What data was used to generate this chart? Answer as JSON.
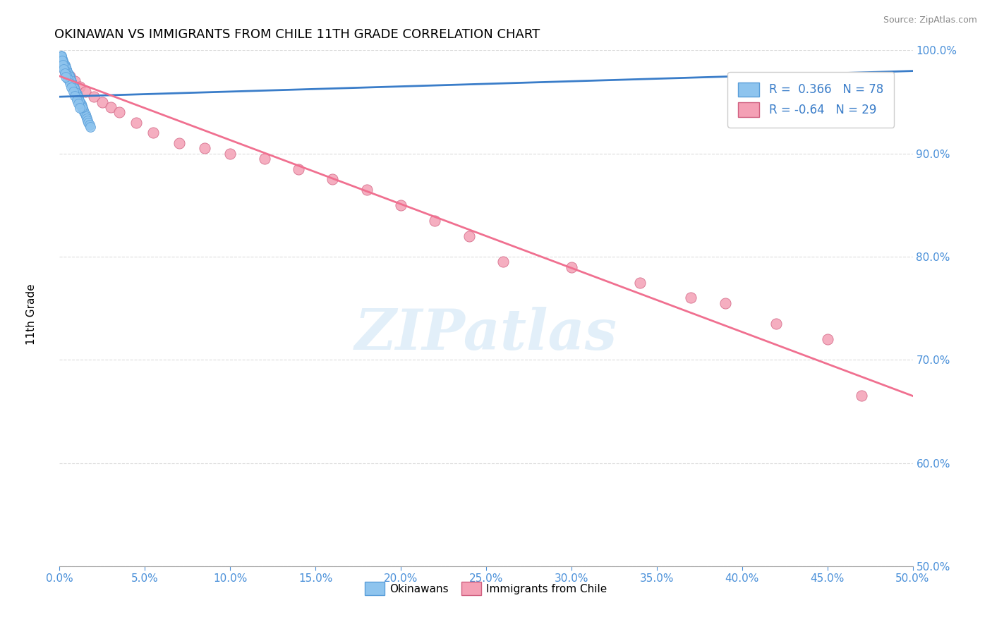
{
  "title": "OKINAWAN VS IMMIGRANTS FROM CHILE 11TH GRADE CORRELATION CHART",
  "source": "Source: ZipAtlas.com",
  "ylabel_label": "11th Grade",
  "xmin": 0.0,
  "xmax": 50.0,
  "ymin": 50.0,
  "ymax": 100.0,
  "R_okinawan": 0.366,
  "N_okinawan": 78,
  "R_chile": -0.64,
  "N_chile": 29,
  "color_okinawan": "#8EC4EE",
  "color_chile": "#F4A0B5",
  "color_line_okinawan": "#3A7DC9",
  "color_line_chile": "#F07090",
  "watermark": "ZIPatlas",
  "okinawan_x": [
    0.1,
    0.15,
    0.2,
    0.25,
    0.3,
    0.35,
    0.4,
    0.45,
    0.5,
    0.55,
    0.6,
    0.65,
    0.7,
    0.75,
    0.8,
    0.85,
    0.9,
    0.95,
    1.0,
    1.05,
    1.1,
    1.15,
    1.2,
    1.25,
    1.3,
    1.35,
    1.4,
    1.45,
    1.5,
    1.55,
    1.6,
    1.65,
    1.7,
    1.75,
    1.8,
    0.1,
    0.2,
    0.3,
    0.4,
    0.5,
    0.6,
    0.7,
    0.8,
    0.9,
    1.0,
    1.1,
    1.2,
    1.3,
    0.15,
    0.25,
    0.35,
    0.45,
    0.55,
    0.65,
    0.75,
    0.85,
    0.95,
    1.05,
    1.15,
    0.1,
    0.2,
    0.3,
    0.4,
    0.5,
    0.6,
    0.7,
    0.8,
    0.9,
    1.0,
    1.1,
    1.2,
    0.1,
    0.15,
    0.2,
    0.25,
    0.3,
    0.35
  ],
  "okinawan_y": [
    99.5,
    99.2,
    99.0,
    98.8,
    98.6,
    98.4,
    98.2,
    98.0,
    97.8,
    97.6,
    97.4,
    97.2,
    97.0,
    96.8,
    96.6,
    96.4,
    96.2,
    96.0,
    95.8,
    95.6,
    95.4,
    95.2,
    95.0,
    94.8,
    94.6,
    94.4,
    94.2,
    94.0,
    93.8,
    93.6,
    93.4,
    93.2,
    93.0,
    92.8,
    92.6,
    99.3,
    98.9,
    98.5,
    98.1,
    97.7,
    97.3,
    96.9,
    96.5,
    96.1,
    95.7,
    95.3,
    94.9,
    94.5,
    99.1,
    98.7,
    98.3,
    97.9,
    97.5,
    97.1,
    96.7,
    96.3,
    95.9,
    95.5,
    95.1,
    98.8,
    98.4,
    98.0,
    97.6,
    97.2,
    96.8,
    96.4,
    96.0,
    95.6,
    95.2,
    94.8,
    94.4,
    99.4,
    99.0,
    98.6,
    98.2,
    97.8,
    97.4
  ],
  "chile_x": [
    0.3,
    0.6,
    0.9,
    1.2,
    1.5,
    2.0,
    2.5,
    3.0,
    3.5,
    4.5,
    5.5,
    7.0,
    8.5,
    10.0,
    12.0,
    14.0,
    16.0,
    18.0,
    20.0,
    22.0,
    24.0,
    26.0,
    30.0,
    34.0,
    37.0,
    39.0,
    42.0,
    45.0,
    47.0
  ],
  "chile_y": [
    98.0,
    97.5,
    97.0,
    96.5,
    96.0,
    95.5,
    95.0,
    94.5,
    94.0,
    93.0,
    92.0,
    91.0,
    90.5,
    90.0,
    89.5,
    88.5,
    87.5,
    86.5,
    85.0,
    83.5,
    82.0,
    79.5,
    79.0,
    77.5,
    76.0,
    75.5,
    73.5,
    72.0,
    66.5
  ],
  "chile_line_x0": 0.0,
  "chile_line_y0": 97.5,
  "chile_line_x1": 50.0,
  "chile_line_y1": 66.5,
  "okinawan_line_x0": 0.0,
  "okinawan_line_y0": 95.5,
  "okinawan_line_x1": 50.0,
  "okinawan_line_y1": 98.0,
  "yticks": [
    100,
    90,
    80,
    70,
    60,
    50
  ],
  "xticks": [
    0,
    5,
    10,
    15,
    20,
    25,
    30,
    35,
    40,
    45,
    50
  ]
}
